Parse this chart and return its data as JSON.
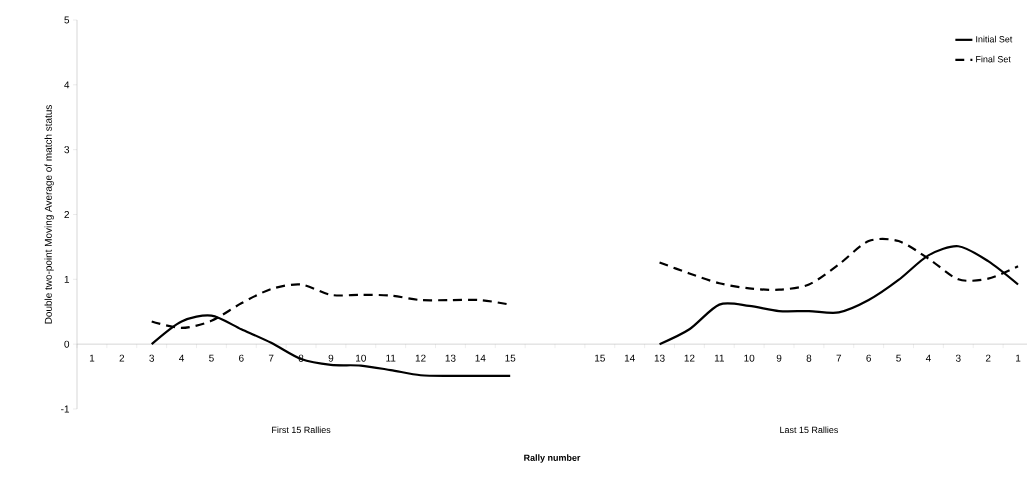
{
  "chart_data": {
    "type": "line",
    "xlabel": "Rally number",
    "ylabel": "Double two-point Moving Average of match status",
    "annotations": [
      "First 15 Rallies",
      "Last 15 Rallies"
    ],
    "categories": [
      "1",
      "2",
      "3",
      "4",
      "5",
      "6",
      "7",
      "8",
      "9",
      "10",
      "11",
      "12",
      "13",
      "14",
      "15",
      null,
      null,
      "15",
      "14",
      "13",
      "12",
      "11",
      "10",
      "9",
      "8",
      "7",
      "6",
      "5",
      "4",
      "3",
      "2",
      "1"
    ],
    "series": [
      {
        "name": "Initial Set",
        "color": "#000000",
        "line_style": "solid",
        "values": [
          null,
          null,
          0,
          0.35,
          0.44,
          0.23,
          0.02,
          -0.23,
          -0.32,
          -0.33,
          -0.4,
          -0.48,
          -0.49,
          -0.49,
          -0.49,
          null,
          null,
          null,
          null,
          0,
          0.23,
          0.61,
          0.59,
          0.51,
          0.51,
          0.49,
          0.68,
          0.99,
          1.37,
          1.51,
          1.28,
          0.92
        ]
      },
      {
        "name": "Final Set",
        "color": "#000000",
        "line_style": "dashed",
        "values": [
          null,
          null,
          0.35,
          0.25,
          0.36,
          0.63,
          0.85,
          0.92,
          0.76,
          0.76,
          0.75,
          0.68,
          0.68,
          0.68,
          0.61,
          null,
          null,
          null,
          null,
          1.26,
          1.09,
          0.94,
          0.86,
          0.84,
          0.92,
          1.23,
          1.59,
          1.59,
          1.32,
          1.0,
          1.01,
          1.2
        ]
      }
    ],
    "ylim": [
      -1,
      5
    ],
    "yticks": [
      -1,
      0,
      1,
      2,
      3,
      4,
      5
    ],
    "legend": "top right",
    "grid": false,
    "marker": "none"
  }
}
